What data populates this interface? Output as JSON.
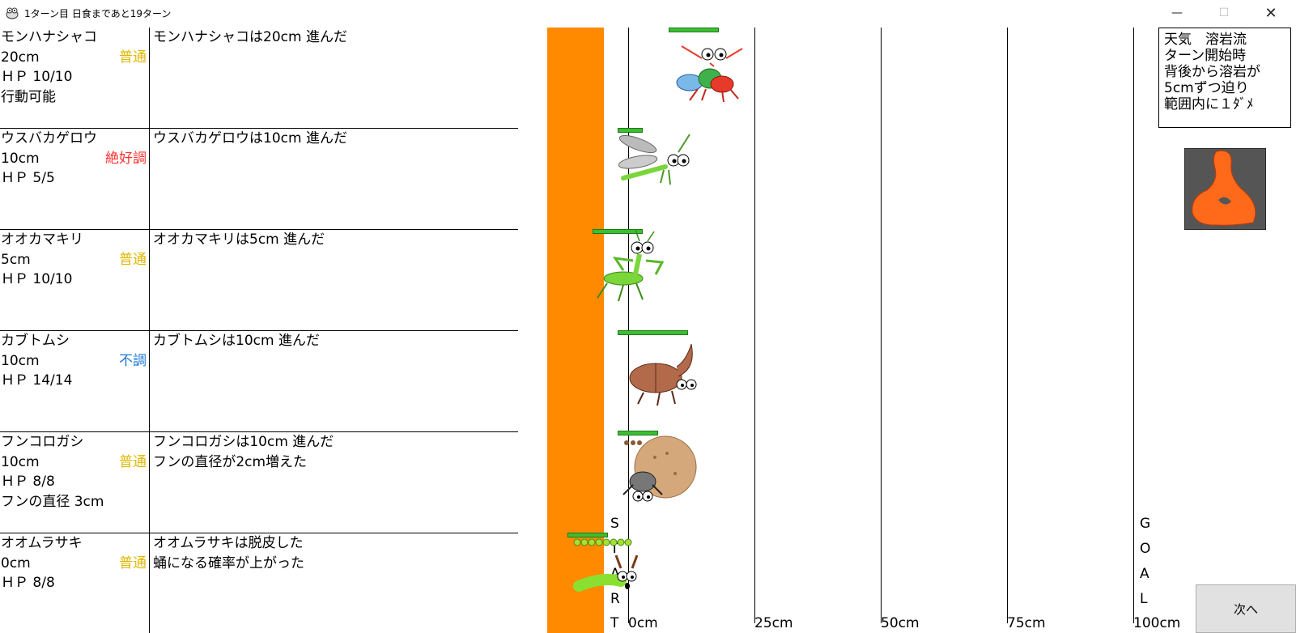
{
  "window": {
    "title": "1ターン目 日食まであと19ターン"
  },
  "insects": [
    {
      "name": "モンハナシャコ",
      "distance": "20cm",
      "condition": "普通",
      "condition_color": "#e0b800",
      "hp": "ＨＰ 10/10",
      "extra": "行動可能",
      "log": [
        "モンハナシャコは20cm 進んだ"
      ]
    },
    {
      "name": "ウスバカゲロウ",
      "distance": "10cm",
      "condition": "絶好調",
      "condition_color": "#ff3030",
      "hp": "ＨＰ 5/5",
      "extra": "",
      "log": [
        "ウスバカゲロウは10cm 進んだ"
      ]
    },
    {
      "name": "オオカマキリ",
      "distance": "5cm",
      "condition": "普通",
      "condition_color": "#e0b800",
      "hp": "ＨＰ 10/10",
      "extra": "",
      "log": [
        "オオカマキリは5cm 進んだ"
      ]
    },
    {
      "name": "カブトムシ",
      "distance": "10cm",
      "condition": "不調",
      "condition_color": "#1e78d2",
      "hp": "ＨＰ 14/14",
      "extra": "",
      "log": [
        "カブトムシは10cm 進んだ"
      ]
    },
    {
      "name": "フンコロガシ",
      "distance": "10cm",
      "condition": "普通",
      "condition_color": "#e0b800",
      "hp": "ＨＰ 8/8",
      "extra": "フンの直径 3cm",
      "log": [
        "フンコロガシは10cm 進んだ",
        "フンの直径が2cm増えた"
      ]
    },
    {
      "name": "オオムラサキ",
      "distance": "0cm",
      "condition": "普通",
      "condition_color": "#e0b800",
      "hp": "ＨＰ 8/8",
      "extra": "",
      "log": [
        "オオムラサキは脱皮した",
        "蛹になる確率が上がった"
      ]
    }
  ],
  "track": {
    "ticks": [
      "0cm",
      "25cm",
      "50cm",
      "75cm",
      "100cm"
    ],
    "start_letters": [
      "S",
      "T",
      "A",
      "R",
      "T"
    ],
    "goal_letters": [
      "G",
      "O",
      "A",
      "L"
    ],
    "lava_color": "#ff8a00"
  },
  "weather": {
    "lines": [
      "天気　溶岩流",
      "ターン開始時",
      "背後から溶岩が",
      "5cmずつ迫り",
      "範囲内に１ﾀﾞﾒ"
    ]
  },
  "next_button": {
    "label": "次へ"
  }
}
